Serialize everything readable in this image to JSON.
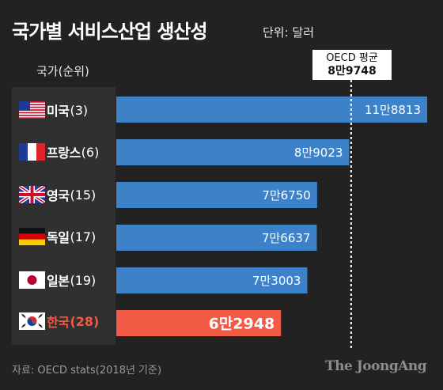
{
  "title": "국가별 서비스산업 생산성",
  "unit": "단위: 달러",
  "column_header": "국가(순위)",
  "reference_line": {
    "label": "OECD 평균",
    "value_label": "8만9748",
    "value": 89748
  },
  "source": "자료: OECD stats(2018년 기준)",
  "logo": "The JoongAng",
  "colors": {
    "background": "#222222",
    "panel": "#303030",
    "bar": "#3d82c9",
    "highlight": "#f15a45",
    "reference": "#ffffff"
  },
  "chart_data": {
    "type": "bar",
    "orientation": "horizontal",
    "title": "국가별 서비스산업 생산성",
    "unit": "단위: 달러",
    "categories": [
      "미국",
      "프랑스",
      "영국",
      "독일",
      "일본",
      "한국"
    ],
    "ranks": [
      "(3)",
      "(6)",
      "(15)",
      "(17)",
      "(19)",
      "(28)"
    ],
    "values": [
      118813,
      89023,
      76750,
      76637,
      73003,
      62948
    ],
    "value_labels": [
      "11만8813",
      "8만9023",
      "7만6750",
      "7만6637",
      "7만3003",
      "6만2948"
    ],
    "highlight_index": 5,
    "reference_line": {
      "label": "OECD 평균",
      "value": 89748
    },
    "grid": false,
    "legend": "none"
  },
  "flags": [
    "us-flag-icon",
    "france-flag-icon",
    "uk-flag-icon",
    "germany-flag-icon",
    "japan-flag-icon",
    "korea-flag-icon"
  ]
}
